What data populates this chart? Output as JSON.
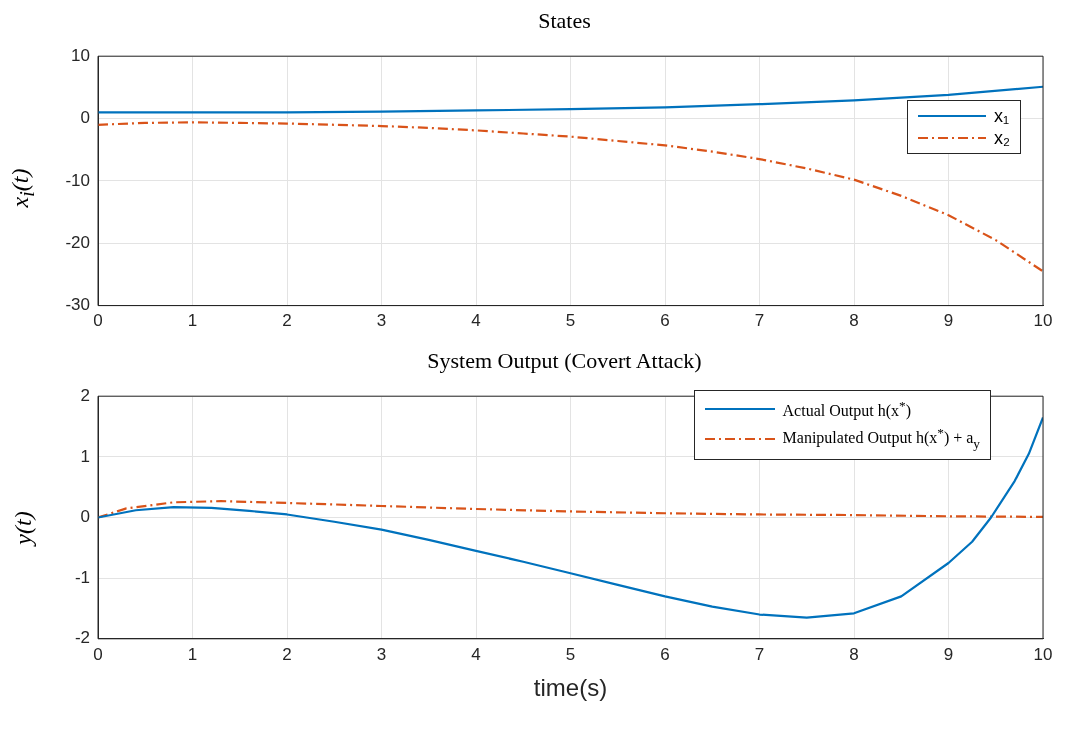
{
  "chart_data": [
    {
      "type": "line",
      "title": "States",
      "ylabel": "x$_{i}$(t)",
      "xlim": [
        0,
        10
      ],
      "xticks": [
        0,
        1,
        2,
        3,
        4,
        5,
        6,
        7,
        8,
        9,
        10
      ],
      "ylim": [
        -30,
        10
      ],
      "yticks": [
        -30,
        -20,
        -10,
        0,
        10
      ],
      "grid": true,
      "legend": "right",
      "marker": "none",
      "series": [
        {
          "name": "x₁",
          "color": "#0072bd",
          "line_style": "solid",
          "x": [
            0,
            1,
            2,
            3,
            4,
            5,
            6,
            7,
            8,
            9,
            10
          ],
          "values": [
            1,
            1,
            1,
            1.1,
            1.3,
            1.5,
            1.8,
            2.3,
            2.9,
            3.8,
            5.1
          ]
        },
        {
          "name": "x₂",
          "color": "#d95319",
          "line_style": "dashed",
          "x": [
            0,
            0.5,
            1,
            1.5,
            2,
            2.5,
            3,
            3.5,
            4,
            4.5,
            5,
            5.5,
            6,
            6.5,
            7,
            7.5,
            8,
            8.5,
            9,
            9.5,
            10
          ],
          "values": [
            -1,
            -0.7,
            -0.6,
            -0.7,
            -0.8,
            -1,
            -1.2,
            -1.5,
            -1.9,
            -2.4,
            -2.9,
            -3.6,
            -4.3,
            -5.3,
            -6.5,
            -8,
            -9.8,
            -12.4,
            -15.5,
            -19.5,
            -24.5
          ]
        }
      ]
    },
    {
      "type": "line",
      "title": "System Output (Covert Attack)",
      "xlabel": "time(s)",
      "ylabel": "y(t)",
      "xlim": [
        0,
        10
      ],
      "xticks": [
        0,
        1,
        2,
        3,
        4,
        5,
        6,
        7,
        8,
        9,
        10
      ],
      "ylim": [
        -2,
        2
      ],
      "yticks": [
        -2,
        -1,
        0,
        1,
        2
      ],
      "grid": true,
      "legend": "top right",
      "marker": "none",
      "series": [
        {
          "name": "Actual Output h(x$^{*}$)",
          "color": "#0072bd",
          "line_style": "solid",
          "x": [
            0,
            0.4,
            0.8,
            1.2,
            1.6,
            2,
            2.5,
            3,
            3.5,
            4,
            4.5,
            5,
            5.5,
            6,
            6.5,
            7,
            7.5,
            8,
            8.5,
            9,
            9.25,
            9.45,
            9.7,
            9.85,
            10
          ],
          "values": [
            0,
            0.12,
            0.17,
            0.16,
            0.11,
            0.05,
            -0.07,
            -0.2,
            -0.37,
            -0.55,
            -0.73,
            -0.92,
            -1.11,
            -1.3,
            -1.47,
            -1.6,
            -1.65,
            -1.58,
            -1.3,
            -0.75,
            -0.4,
            0,
            0.6,
            1.05,
            1.65
          ]
        },
        {
          "name": "Manipulated Output h(x$^{*}$) + a$_{y}$",
          "color": "#d95319",
          "line_style": "dashed",
          "x": [
            0,
            0.3,
            0.8,
            1.3,
            2,
            3,
            4,
            5,
            6,
            7,
            8,
            9,
            10
          ],
          "values": [
            0,
            0.15,
            0.25,
            0.27,
            0.24,
            0.19,
            0.14,
            0.1,
            0.07,
            0.05,
            0.04,
            0.02,
            0.01
          ]
        }
      ]
    }
  ]
}
